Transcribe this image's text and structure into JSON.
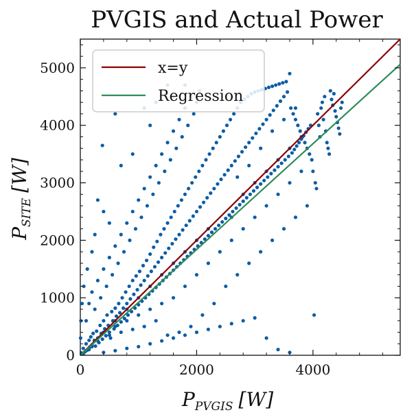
{
  "chart_data": {
    "type": "scatter",
    "title": "PVGIS and Actual Power",
    "xlabel": {
      "main": "P",
      "sub": "PVGIS",
      "unit": "[W]"
    },
    "ylabel": {
      "main": "P",
      "sub": "SITE",
      "unit": "[W]"
    },
    "xlim": [
      0,
      5500
    ],
    "ylim": [
      0,
      5500
    ],
    "xticks": [
      0,
      2000,
      4000
    ],
    "yticks": [
      0,
      1000,
      2000,
      3000,
      4000,
      5000
    ],
    "xtick_labels": [
      "0",
      "2000",
      "4000"
    ],
    "ytick_labels": [
      "0",
      "1000",
      "2000",
      "3000",
      "4000",
      "5000"
    ],
    "grid": false,
    "legend_position": "top-left",
    "series": [
      {
        "name": "x=y",
        "kind": "line",
        "color": "#8b0000",
        "points": [
          [
            0,
            0
          ],
          [
            5500,
            5500
          ]
        ]
      },
      {
        "name": "Regression",
        "kind": "line",
        "color": "#2e8b57",
        "points": [
          [
            0,
            0
          ],
          [
            5500,
            5060
          ]
        ]
      }
    ],
    "scatter_color": "#0c5da5",
    "scatter_points": [
      [
        20,
        40
      ],
      [
        50,
        120
      ],
      [
        80,
        60
      ],
      [
        100,
        200
      ],
      [
        120,
        90
      ],
      [
        150,
        260
      ],
      [
        160,
        140
      ],
      [
        180,
        320
      ],
      [
        200,
        180
      ],
      [
        220,
        380
      ],
      [
        240,
        260
      ],
      [
        260,
        160
      ],
      [
        280,
        420
      ],
      [
        300,
        300
      ],
      [
        320,
        220
      ],
      [
        340,
        520
      ],
      [
        360,
        380
      ],
      [
        380,
        280
      ],
      [
        400,
        600
      ],
      [
        420,
        460
      ],
      [
        440,
        340
      ],
      [
        460,
        700
      ],
      [
        480,
        520
      ],
      [
        500,
        400
      ],
      [
        520,
        300
      ],
      [
        540,
        760
      ],
      [
        560,
        600
      ],
      [
        580,
        460
      ],
      [
        600,
        820
      ],
      [
        620,
        680
      ],
      [
        640,
        520
      ],
      [
        660,
        900
      ],
      [
        680,
        740
      ],
      [
        700,
        580
      ],
      [
        720,
        1000
      ],
      [
        740,
        820
      ],
      [
        760,
        640
      ],
      [
        780,
        1100
      ],
      [
        800,
        900
      ],
      [
        820,
        700
      ],
      [
        840,
        1200
      ],
      [
        860,
        980
      ],
      [
        880,
        760
      ],
      [
        900,
        1300
      ],
      [
        920,
        1060
      ],
      [
        940,
        820
      ],
      [
        960,
        1380
      ],
      [
        980,
        1140
      ],
      [
        1000,
        880
      ],
      [
        1020,
        1460
      ],
      [
        1040,
        1220
      ],
      [
        1060,
        940
      ],
      [
        1080,
        1560
      ],
      [
        1100,
        1300
      ],
      [
        1120,
        1000
      ],
      [
        1140,
        1650
      ],
      [
        1160,
        1380
      ],
      [
        1180,
        1060
      ],
      [
        1200,
        1760
      ],
      [
        1220,
        1460
      ],
      [
        1240,
        1120
      ],
      [
        1260,
        1880
      ],
      [
        1280,
        1540
      ],
      [
        1300,
        1180
      ],
      [
        1320,
        1980
      ],
      [
        1340,
        1620
      ],
      [
        1360,
        1240
      ],
      [
        1380,
        2100
      ],
      [
        1400,
        1700
      ],
      [
        1420,
        1300
      ],
      [
        1440,
        2200
      ],
      [
        1460,
        1780
      ],
      [
        1480,
        1360
      ],
      [
        1500,
        2300
      ],
      [
        1520,
        1860
      ],
      [
        1540,
        1420
      ],
      [
        1560,
        2400
      ],
      [
        1580,
        1940
      ],
      [
        1600,
        1480
      ],
      [
        1620,
        2500
      ],
      [
        1640,
        2020
      ],
      [
        1660,
        1540
      ],
      [
        1680,
        2600
      ],
      [
        1700,
        2100
      ],
      [
        1720,
        1600
      ],
      [
        1740,
        2700
      ],
      [
        1760,
        2180
      ],
      [
        1780,
        1660
      ],
      [
        1800,
        2800
      ],
      [
        1820,
        2260
      ],
      [
        1840,
        1720
      ],
      [
        1860,
        2900
      ],
      [
        1880,
        2340
      ],
      [
        1900,
        1780
      ],
      [
        1920,
        3000
      ],
      [
        1940,
        2420
      ],
      [
        1960,
        1840
      ],
      [
        1980,
        3100
      ],
      [
        2000,
        2500
      ],
      [
        2020,
        1900
      ],
      [
        2040,
        3200
      ],
      [
        2060,
        2580
      ],
      [
        2080,
        1960
      ],
      [
        2100,
        3300
      ],
      [
        2120,
        2660
      ],
      [
        2140,
        2020
      ],
      [
        2160,
        3400
      ],
      [
        2180,
        2740
      ],
      [
        2200,
        2080
      ],
      [
        2220,
        3500
      ],
      [
        2240,
        2820
      ],
      [
        2260,
        2140
      ],
      [
        2280,
        3600
      ],
      [
        2300,
        2900
      ],
      [
        2320,
        2200
      ],
      [
        2340,
        3700
      ],
      [
        2360,
        2980
      ],
      [
        2380,
        2260
      ],
      [
        2400,
        3800
      ],
      [
        2420,
        3060
      ],
      [
        2440,
        2320
      ],
      [
        2460,
        3900
      ],
      [
        2480,
        3140
      ],
      [
        2500,
        2380
      ],
      [
        2520,
        4000
      ],
      [
        2540,
        3220
      ],
      [
        2560,
        2440
      ],
      [
        2580,
        4100
      ],
      [
        2600,
        3300
      ],
      [
        2620,
        2500
      ],
      [
        2640,
        4200
      ],
      [
        2660,
        3380
      ],
      [
        2680,
        2560
      ],
      [
        2700,
        4300
      ],
      [
        2720,
        3460
      ],
      [
        2740,
        2620
      ],
      [
        2760,
        4400
      ],
      [
        2780,
        3540
      ],
      [
        2800,
        2680
      ],
      [
        2820,
        4450
      ],
      [
        2840,
        3620
      ],
      [
        2860,
        2740
      ],
      [
        2880,
        4500
      ],
      [
        2900,
        3700
      ],
      [
        2920,
        2800
      ],
      [
        2940,
        4550
      ],
      [
        2960,
        3780
      ],
      [
        2980,
        2860
      ],
      [
        3000,
        4580
      ],
      [
        3020,
        3860
      ],
      [
        3040,
        2920
      ],
      [
        3060,
        4600
      ],
      [
        3080,
        3940
      ],
      [
        3100,
        2980
      ],
      [
        3120,
        4620
      ],
      [
        3140,
        4020
      ],
      [
        3160,
        3040
      ],
      [
        3180,
        4640
      ],
      [
        3200,
        4100
      ],
      [
        3220,
        3100
      ],
      [
        3240,
        4660
      ],
      [
        3260,
        4180
      ],
      [
        3280,
        3160
      ],
      [
        3300,
        4680
      ],
      [
        3320,
        4260
      ],
      [
        3340,
        3220
      ],
      [
        3360,
        4700
      ],
      [
        3380,
        4340
      ],
      [
        3400,
        3280
      ],
      [
        3420,
        4720
      ],
      [
        3440,
        4420
      ],
      [
        3460,
        3340
      ],
      [
        3480,
        4740
      ],
      [
        3500,
        4500
      ],
      [
        3520,
        3400
      ],
      [
        3540,
        4760
      ],
      [
        3560,
        4580
      ],
      [
        3580,
        3460
      ],
      [
        3600,
        4900
      ],
      [
        3620,
        4300
      ],
      [
        3640,
        3520
      ],
      [
        3660,
        4200
      ],
      [
        3680,
        3580
      ],
      [
        3700,
        4100
      ],
      [
        3720,
        3640
      ],
      [
        3740,
        4000
      ],
      [
        3760,
        3700
      ],
      [
        3780,
        3900
      ],
      [
        3800,
        3760
      ],
      [
        3820,
        3800
      ],
      [
        3840,
        3820
      ],
      [
        3860,
        3700
      ],
      [
        3880,
        3880
      ],
      [
        3900,
        3600
      ],
      [
        3920,
        3940
      ],
      [
        3940,
        3500
      ],
      [
        3960,
        4000
      ],
      [
        3980,
        3400
      ],
      [
        4000,
        3200
      ],
      [
        4020,
        700
      ],
      [
        4040,
        3000
      ],
      [
        4060,
        2900
      ],
      [
        4080,
        4200
      ],
      [
        4100,
        4000
      ],
      [
        4120,
        3800
      ],
      [
        4140,
        4300
      ],
      [
        4160,
        4400
      ],
      [
        4180,
        4100
      ],
      [
        4200,
        4500
      ],
      [
        4220,
        3900
      ],
      [
        4240,
        3700
      ],
      [
        4260,
        3600
      ],
      [
        4280,
        3500
      ],
      [
        4300,
        4600
      ],
      [
        4320,
        4450
      ],
      [
        4340,
        4350
      ],
      [
        4360,
        4550
      ],
      [
        4380,
        4250
      ],
      [
        4400,
        4150
      ],
      [
        4420,
        4050
      ],
      [
        4440,
        3950
      ],
      [
        4460,
        3850
      ],
      [
        4480,
        4300
      ],
      [
        4500,
        4400
      ],
      [
        100,
        600
      ],
      [
        150,
        900
      ],
      [
        200,
        1100
      ],
      [
        250,
        800
      ],
      [
        300,
        1300
      ],
      [
        350,
        1000
      ],
      [
        400,
        1500
      ],
      [
        450,
        1200
      ],
      [
        500,
        1700
      ],
      [
        550,
        1400
      ],
      [
        600,
        1900
      ],
      [
        650,
        1600
      ],
      [
        700,
        2100
      ],
      [
        750,
        1800
      ],
      [
        800,
        2300
      ],
      [
        850,
        2000
      ],
      [
        900,
        2500
      ],
      [
        950,
        2200
      ],
      [
        1000,
        2700
      ],
      [
        1050,
        2400
      ],
      [
        1100,
        2900
      ],
      [
        1150,
        2600
      ],
      [
        1200,
        3100
      ],
      [
        1250,
        2800
      ],
      [
        1300,
        3300
      ],
      [
        1350,
        3000
      ],
      [
        1400,
        3500
      ],
      [
        1450,
        3200
      ],
      [
        1500,
        3700
      ],
      [
        1550,
        3400
      ],
      [
        1600,
        3900
      ],
      [
        1650,
        3600
      ],
      [
        1700,
        4100
      ],
      [
        1750,
        3800
      ],
      [
        1800,
        4300
      ],
      [
        1850,
        4000
      ],
      [
        1900,
        4500
      ],
      [
        1950,
        4200
      ],
      [
        2000,
        4400
      ],
      [
        2050,
        4600
      ],
      [
        380,
        3650
      ],
      [
        600,
        4200
      ],
      [
        700,
        3300
      ],
      [
        900,
        3500
      ],
      [
        1100,
        4300
      ],
      [
        1200,
        4000
      ],
      [
        1300,
        4400
      ],
      [
        1500,
        4700
      ],
      [
        1600,
        4500
      ],
      [
        1800,
        4700
      ],
      [
        300,
        2700
      ],
      [
        400,
        2500
      ],
      [
        500,
        2300
      ],
      [
        200,
        1800
      ],
      [
        250,
        2100
      ],
      [
        120,
        1500
      ],
      [
        60,
        1200
      ],
      [
        30,
        900
      ],
      [
        10,
        600
      ],
      [
        5,
        300
      ],
      [
        400,
        50
      ],
      [
        600,
        80
      ],
      [
        800,
        120
      ],
      [
        1000,
        150
      ],
      [
        1200,
        200
      ],
      [
        1400,
        250
      ],
      [
        1600,
        300
      ],
      [
        1800,
        350
      ],
      [
        2000,
        400
      ],
      [
        2200,
        450
      ],
      [
        2400,
        500
      ],
      [
        2600,
        550
      ],
      [
        2800,
        600
      ],
      [
        3000,
        650
      ],
      [
        3200,
        300
      ],
      [
        3400,
        100
      ],
      [
        3600,
        50
      ],
      [
        2500,
        1200
      ],
      [
        2700,
        1400
      ],
      [
        2900,
        1600
      ],
      [
        3100,
        1800
      ],
      [
        3300,
        2000
      ],
      [
        3500,
        2200
      ],
      [
        3700,
        2400
      ],
      [
        3900,
        2600
      ],
      [
        2300,
        900
      ],
      [
        2100,
        700
      ],
      [
        1900,
        500
      ],
      [
        1700,
        400
      ],
      [
        1500,
        350
      ],
      [
        1300,
        600
      ],
      [
        1100,
        500
      ],
      [
        900,
        450
      ],
      [
        700,
        400
      ],
      [
        500,
        350
      ],
      [
        300,
        250
      ],
      [
        200,
        150
      ],
      [
        150,
        100
      ],
      [
        100,
        80
      ],
      [
        50,
        30
      ],
      [
        2600,
        2000
      ],
      [
        2800,
        2200
      ],
      [
        3000,
        2400
      ],
      [
        3200,
        2600
      ],
      [
        3400,
        2800
      ],
      [
        3600,
        3000
      ],
      [
        3800,
        3200
      ],
      [
        2200,
        1600
      ],
      [
        2000,
        1400
      ],
      [
        1800,
        1200
      ],
      [
        1600,
        1000
      ],
      [
        1400,
        900
      ],
      [
        1200,
        800
      ],
      [
        1000,
        700
      ],
      [
        800,
        600
      ],
      [
        600,
        500
      ],
      [
        2400,
        1800
      ],
      [
        2600,
        2400
      ],
      [
        2800,
        2800
      ],
      [
        3000,
        3000
      ],
      [
        3200,
        3200
      ],
      [
        3400,
        3400
      ],
      [
        3600,
        3600
      ],
      [
        3800,
        3800
      ],
      [
        2200,
        2200
      ],
      [
        2000,
        2000
      ],
      [
        1800,
        1800
      ],
      [
        1600,
        1600
      ],
      [
        1400,
        1400
      ],
      [
        1200,
        1200
      ],
      [
        1000,
        1000
      ],
      [
        800,
        800
      ],
      [
        600,
        600
      ],
      [
        400,
        400
      ],
      [
        3100,
        3600
      ],
      [
        3300,
        3900
      ],
      [
        3500,
        4100
      ],
      [
        3700,
        4300
      ],
      [
        2900,
        3300
      ],
      [
        2700,
        3100
      ]
    ]
  }
}
